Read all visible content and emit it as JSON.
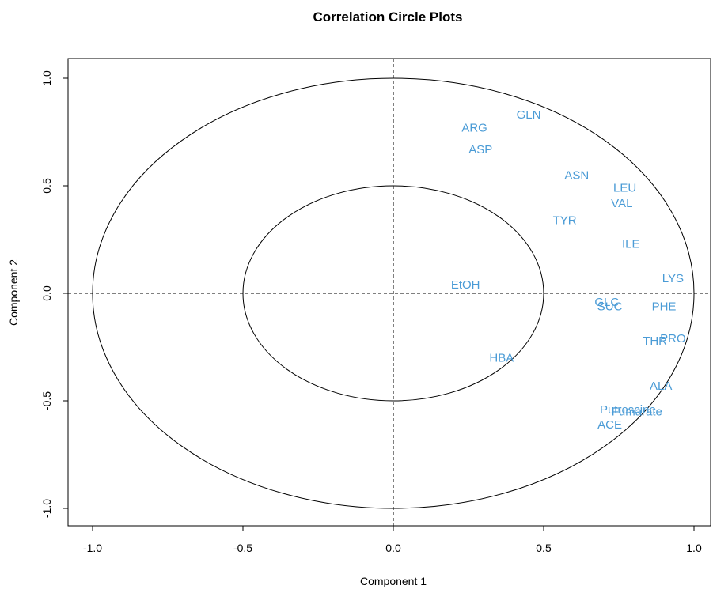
{
  "chart_data": {
    "type": "scatter",
    "title": "Correlation Circle Plots",
    "xlabel": "Component 1",
    "ylabel": "Component 2",
    "xlim": [
      -1.0,
      1.0
    ],
    "ylim": [
      -1.0,
      1.0
    ],
    "x_ticks": [
      -1.0,
      -0.5,
      0.0,
      0.5,
      1.0
    ],
    "x_tick_labels": [
      "-1.0",
      "-0.5",
      "0.0",
      "0.5",
      "1.0"
    ],
    "y_ticks": [
      -1.0,
      -0.5,
      0.0,
      0.5,
      1.0
    ],
    "y_tick_labels": [
      "-1.0",
      "-0.5",
      "0.0",
      "0.5",
      "1.0"
    ],
    "circles": [
      1.0,
      0.5
    ],
    "grid": false,
    "reference_lines": [
      {
        "axis": "x",
        "value": 0
      },
      {
        "axis": "y",
        "value": 0
      }
    ],
    "label_color": "#4A9BD6",
    "points": [
      {
        "label": "GLN",
        "x": 0.45,
        "y": 0.83
      },
      {
        "label": "ARG",
        "x": 0.27,
        "y": 0.77
      },
      {
        "label": "ASP",
        "x": 0.29,
        "y": 0.67
      },
      {
        "label": "ASN",
        "x": 0.61,
        "y": 0.55
      },
      {
        "label": "LEU",
        "x": 0.77,
        "y": 0.49
      },
      {
        "label": "VAL",
        "x": 0.76,
        "y": 0.42
      },
      {
        "label": "TYR",
        "x": 0.57,
        "y": 0.34
      },
      {
        "label": "ILE",
        "x": 0.79,
        "y": 0.23
      },
      {
        "label": "LYS",
        "x": 0.93,
        "y": 0.07
      },
      {
        "label": "EtOH",
        "x": 0.24,
        "y": 0.04
      },
      {
        "label": "GLC",
        "x": 0.71,
        "y": -0.04
      },
      {
        "label": "SUC",
        "x": 0.72,
        "y": -0.06
      },
      {
        "label": "PHE",
        "x": 0.9,
        "y": -0.06
      },
      {
        "label": "PRO",
        "x": 0.93,
        "y": -0.21
      },
      {
        "label": "THR",
        "x": 0.87,
        "y": -0.22
      },
      {
        "label": "HBA",
        "x": 0.36,
        "y": -0.3
      },
      {
        "label": "ALA",
        "x": 0.89,
        "y": -0.43
      },
      {
        "label": "Putrescine",
        "x": 0.78,
        "y": -0.54
      },
      {
        "label": "Fumarate",
        "x": 0.81,
        "y": -0.55
      },
      {
        "label": "ACE",
        "x": 0.72,
        "y": -0.61
      }
    ]
  }
}
